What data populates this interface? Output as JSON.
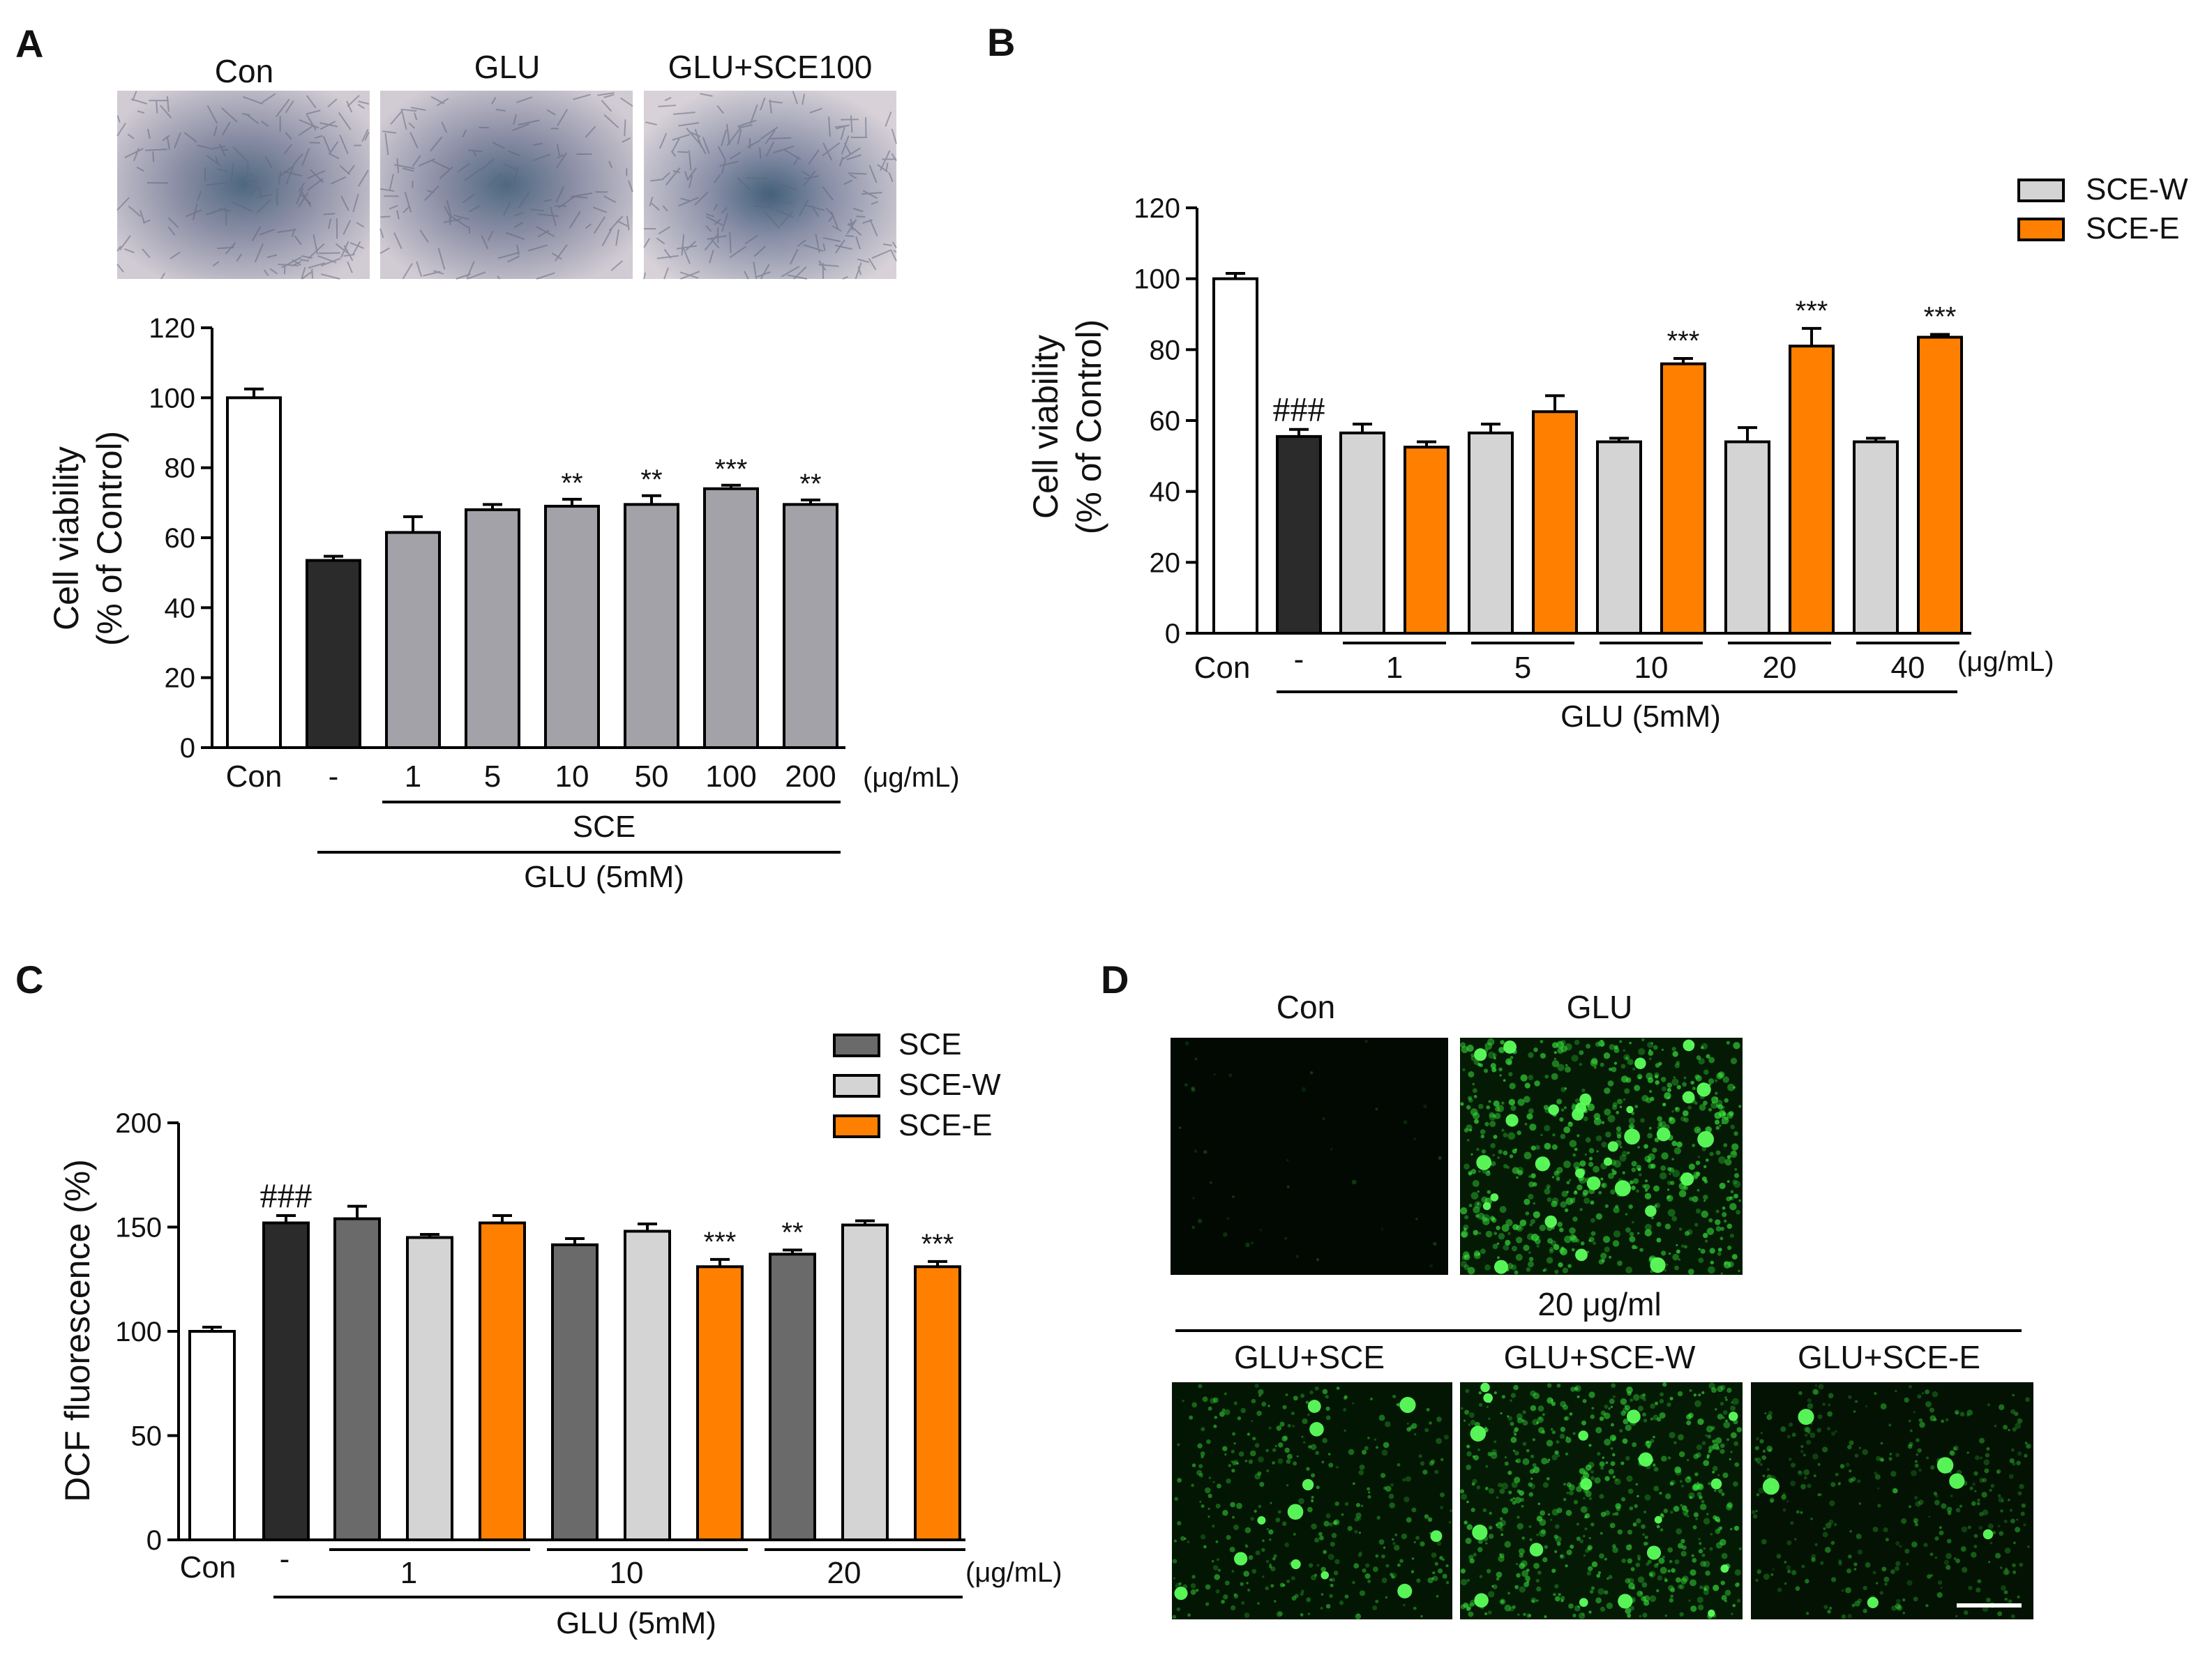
{
  "colors": {
    "white": "#ffffff",
    "black": "#2b2b2b",
    "gray_a": "#a2a2a8",
    "dark_gray": "#6a6a6a",
    "light_gray": "#d4d4d4",
    "orange": "#ff8000",
    "micro_bg": "#c9c3cd",
    "micro_center": "#566a82",
    "fluor_bg": "#020802",
    "fluor_green": "#39e63c"
  },
  "panels": {
    "a": {
      "letter": "A",
      "images": [
        "Con",
        "GLU",
        "GLU+SCE100"
      ]
    },
    "b": {
      "letter": "B"
    },
    "c": {
      "letter": "C"
    },
    "d": {
      "letter": "D",
      "top_images": [
        "Con",
        "GLU"
      ],
      "concentration": "20 μg/ml",
      "bottom_images": [
        "GLU+SCE",
        "GLU+SCE-W",
        "GLU+SCE-E"
      ]
    }
  },
  "chart_data": [
    {
      "id": "A",
      "type": "bar",
      "ylabel_line1": "Cell viability",
      "ylabel_line2": "(% of Control)",
      "ylim": [
        0,
        120
      ],
      "yticks": [
        0,
        20,
        40,
        60,
        80,
        100,
        120
      ],
      "categories": [
        "Con",
        "-",
        "1",
        "5",
        "10",
        "50",
        "100",
        "200"
      ],
      "values": [
        100,
        53.5,
        61.5,
        68,
        69,
        69.5,
        74,
        69.5
      ],
      "errors": [
        2.5,
        1.2,
        4.5,
        1.5,
        2,
        2.5,
        1,
        1.3
      ],
      "significance": [
        "",
        "",
        "",
        "",
        "**",
        "**",
        "***",
        "**"
      ],
      "bar_colors": [
        "white",
        "black",
        "gray_a",
        "gray_a",
        "gray_a",
        "gray_a",
        "gray_a",
        "gray_a"
      ],
      "unit": "(μg/mL)",
      "bracket_labels": [
        "SCE",
        "GLU (5mM)"
      ]
    },
    {
      "id": "B",
      "type": "bar",
      "ylabel_line1": "Cell viability",
      "ylabel_line2": "(% of Control)",
      "ylim": [
        0,
        120
      ],
      "yticks": [
        0,
        20,
        40,
        60,
        80,
        100,
        120
      ],
      "categories": [
        "Con",
        "-",
        "1",
        "5",
        "10",
        "20",
        "40"
      ],
      "legend": [
        {
          "name": "SCE-W",
          "color": "light_gray"
        },
        {
          "name": "SCE-E",
          "color": "orange"
        }
      ],
      "bars": [
        {
          "value": 100,
          "error": 1.5,
          "color": "white",
          "sig": ""
        },
        {
          "value": 55.5,
          "error": 2,
          "color": "black",
          "sig": "###"
        },
        {
          "value": 56.5,
          "error": 2.5,
          "color": "light_gray",
          "sig": ""
        },
        {
          "value": 52.5,
          "error": 1.5,
          "color": "orange",
          "sig": ""
        },
        {
          "value": 56.5,
          "error": 2.5,
          "color": "light_gray",
          "sig": ""
        },
        {
          "value": 62.5,
          "error": 4.5,
          "color": "orange",
          "sig": ""
        },
        {
          "value": 54,
          "error": 1,
          "color": "light_gray",
          "sig": ""
        },
        {
          "value": 76,
          "error": 1.5,
          "color": "orange",
          "sig": "***"
        },
        {
          "value": 54,
          "error": 4,
          "color": "light_gray",
          "sig": ""
        },
        {
          "value": 81,
          "error": 5,
          "color": "orange",
          "sig": "***"
        },
        {
          "value": 54,
          "error": 1,
          "color": "light_gray",
          "sig": ""
        },
        {
          "value": 83.5,
          "error": 0.8,
          "color": "orange",
          "sig": "***"
        }
      ],
      "unit": "(μg/mL)",
      "bracket_label": "GLU (5mM)"
    },
    {
      "id": "C",
      "type": "bar",
      "ylabel": "DCF fluorescence (%)",
      "ylim": [
        0,
        200
      ],
      "yticks": [
        0,
        50,
        100,
        150,
        200
      ],
      "categories": [
        "Con",
        "-",
        "1",
        "10",
        "20"
      ],
      "legend": [
        {
          "name": "SCE",
          "color": "dark_gray"
        },
        {
          "name": "SCE-W",
          "color": "light_gray"
        },
        {
          "name": "SCE-E",
          "color": "orange"
        }
      ],
      "bars": [
        {
          "value": 100,
          "error": 2,
          "color": "white",
          "sig": ""
        },
        {
          "value": 152,
          "error": 3.5,
          "color": "black",
          "sig": "###"
        },
        {
          "value": 154,
          "error": 6,
          "color": "dark_gray",
          "sig": ""
        },
        {
          "value": 145,
          "error": 1.5,
          "color": "light_gray",
          "sig": ""
        },
        {
          "value": 152,
          "error": 3.5,
          "color": "orange",
          "sig": ""
        },
        {
          "value": 141.5,
          "error": 3,
          "color": "dark_gray",
          "sig": ""
        },
        {
          "value": 148,
          "error": 3.5,
          "color": "light_gray",
          "sig": ""
        },
        {
          "value": 131,
          "error": 3.5,
          "color": "orange",
          "sig": "***"
        },
        {
          "value": 137,
          "error": 2,
          "color": "dark_gray",
          "sig": "**"
        },
        {
          "value": 151,
          "error": 2,
          "color": "light_gray",
          "sig": ""
        },
        {
          "value": 131,
          "error": 2.5,
          "color": "orange",
          "sig": "***"
        }
      ],
      "unit": "(μg/mL)",
      "bracket_label": "GLU (5mM)"
    }
  ]
}
